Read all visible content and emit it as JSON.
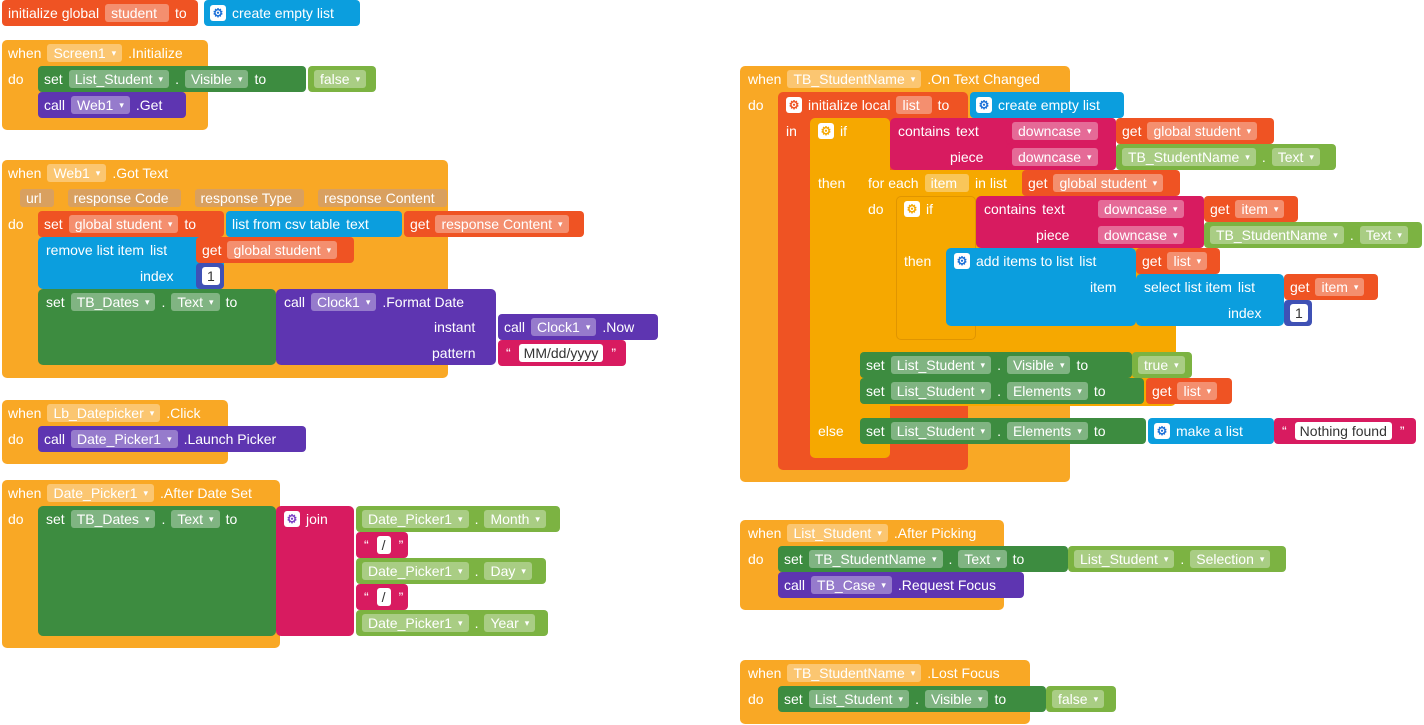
{
  "init_global": {
    "kw1": "initialize global",
    "name": "student",
    "to": "to",
    "list": "create empty list"
  },
  "screen_init": {
    "when": "when",
    "component": "Screen1",
    "event": ".Initialize",
    "do": "do",
    "set": "set",
    "comp1": "List_Student",
    "prop1": "Visible",
    "to": "to",
    "val1": "false",
    "call": "call",
    "comp2": "Web1",
    "method2": ".Get"
  },
  "web_gottext": {
    "when": "when",
    "component": "Web1",
    "event": ".Got Text",
    "params": [
      "url",
      "response Code",
      "response Type",
      "response Content"
    ],
    "do": "do",
    "set": "set",
    "var": "global student",
    "to": "to",
    "csv": "list from csv table",
    "text": "text",
    "get": "get",
    "resp": "response Content",
    "remove": "remove list item",
    "list": "list",
    "gs": "global student",
    "index": "index",
    "n1": "1",
    "set2": "set",
    "comp3": "TB_Dates",
    "prop3": "Text",
    "to2": "to",
    "call2": "call",
    "clock": "Clock1",
    "fmt": ".Format Date",
    "instant": "instant",
    "call3": "call",
    "clock2": "Clock1",
    "now": ".Now",
    "pattern": "pattern",
    "pat": "MM/dd/yyyy"
  },
  "lb_click": {
    "when": "when",
    "component": "Lb_Datepicker",
    "event": ".Click",
    "do": "do",
    "call": "call",
    "comp": "Date_Picker1",
    "method": ".Launch Picker"
  },
  "after_date": {
    "when": "when",
    "component": "Date_Picker1",
    "event": ".After Date Set",
    "do": "do",
    "set": "set",
    "comp": "TB_Dates",
    "prop": "Text",
    "to": "to",
    "join": "join",
    "dp": "Date_Picker1",
    "month": "Month",
    "sep": "/",
    "day": "Day",
    "year": "Year"
  },
  "tb_changed": {
    "when": "when",
    "component": "TB_StudentName",
    "event": ".On Text Changed",
    "do": "do",
    "init_local": "initialize local",
    "lvar": "list",
    "to": "to",
    "create": "create empty list",
    "in": "in",
    "if": "if",
    "contains": "contains",
    "text": "text",
    "downcase": "downcase",
    "get": "get",
    "gs": "global student",
    "piece": "piece",
    "comp": "TB_StudentName",
    "ptext": "Text",
    "then": "then",
    "foreach": "for each",
    "item": "item",
    "inlist": "in list",
    "additems": "add items to list",
    "list": "list",
    "itemlbl": "item",
    "select": "select list item",
    "index": "index",
    "n1": "1",
    "set": "set",
    "ls": "List_Student",
    "visible": "Visible",
    "true": "true",
    "elements": "Elements",
    "else": "else",
    "makelist": "make a list",
    "nothing": "Nothing found"
  },
  "after_picking": {
    "when": "when",
    "component": "List_Student",
    "event": ".After Picking",
    "do": "do",
    "set": "set",
    "comp": "TB_StudentName",
    "prop": "Text",
    "to": "to",
    "src": "List_Student",
    "sel": "Selection",
    "call": "call",
    "comp2": "TB_Case",
    "method": ".Request Focus"
  },
  "lost_focus": {
    "when": "when",
    "component": "TB_StudentName",
    "event": ".Lost Focus",
    "do": "do",
    "set": "set",
    "comp": "List_Student",
    "prop": "Visible",
    "to": "to",
    "val": "false"
  }
}
